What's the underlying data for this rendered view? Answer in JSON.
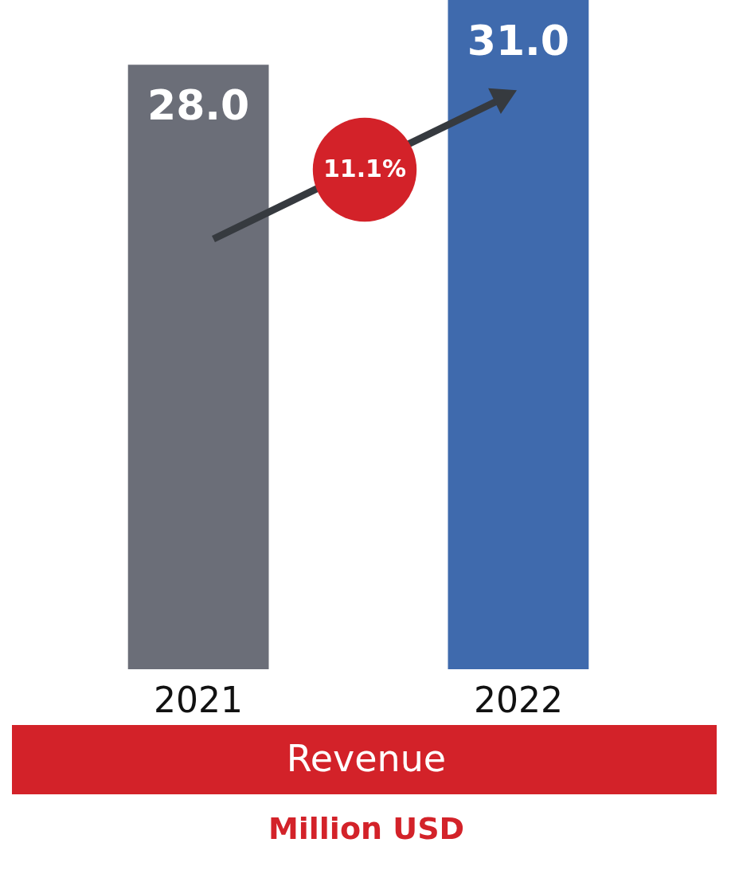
{
  "chart_data": {
    "type": "bar",
    "title": "Revenue",
    "subtitle": "Million USD",
    "categories": [
      "2021",
      "2022"
    ],
    "values": [
      28.0,
      31.0
    ],
    "value_labels": [
      "28.0",
      "31.0"
    ],
    "colors": [
      "#6b6e78",
      "#3f6aad"
    ],
    "annotations": [
      "11.1%"
    ]
  }
}
